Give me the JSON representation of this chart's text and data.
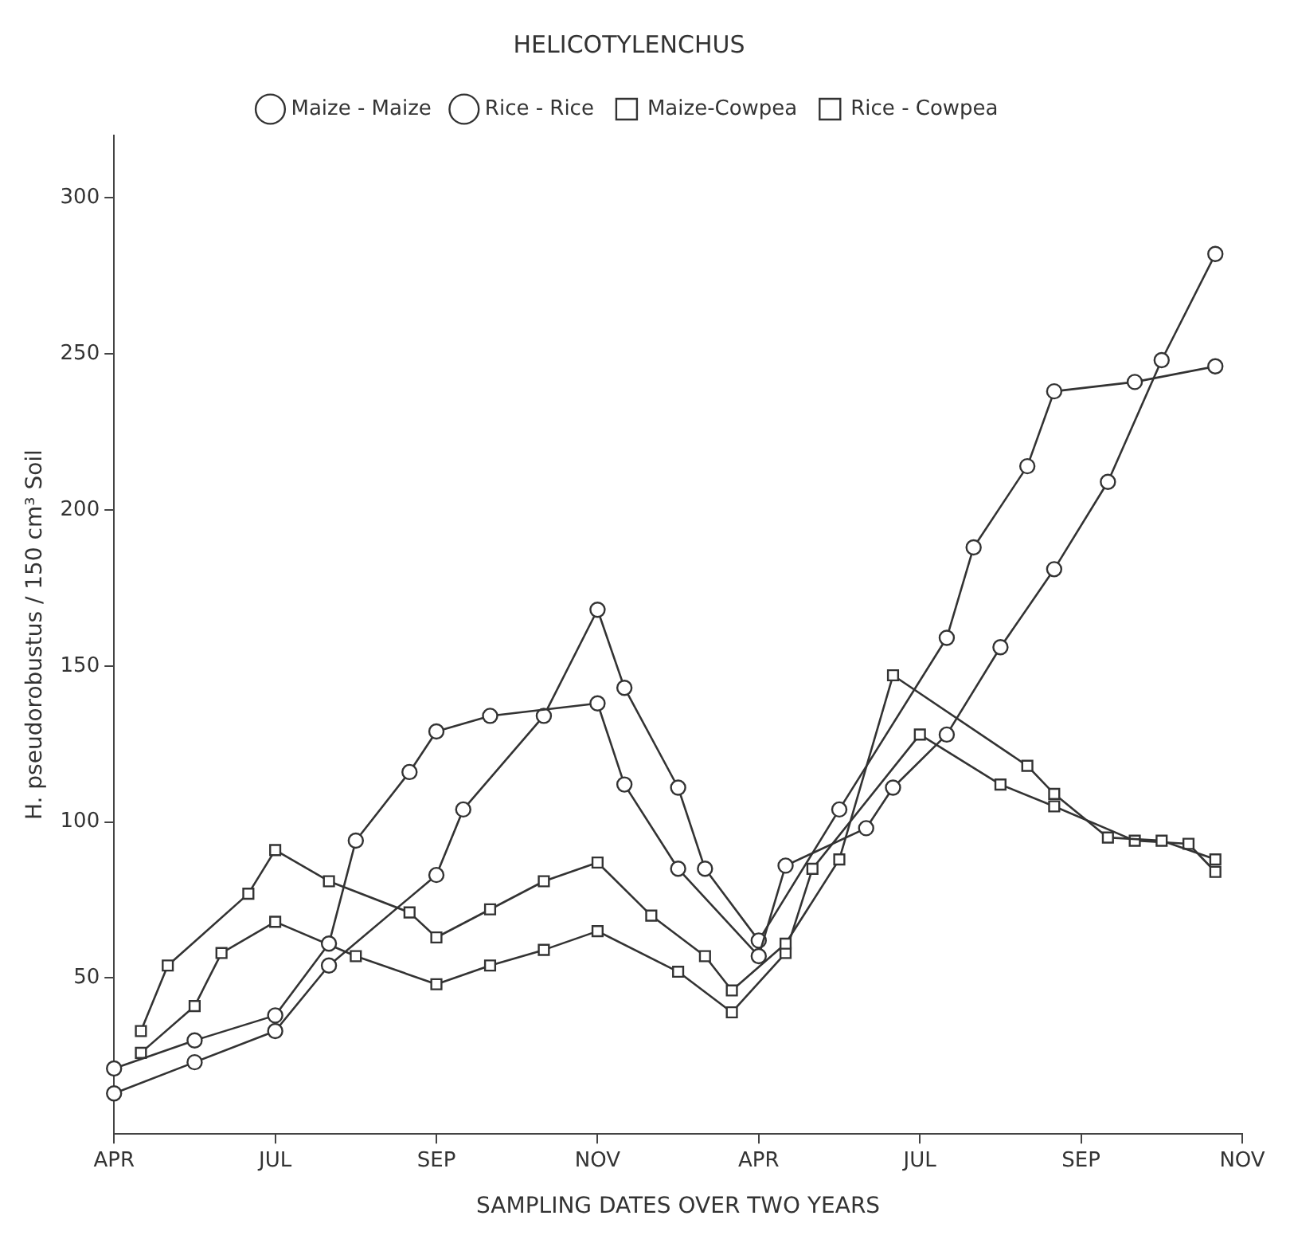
{
  "chart_data": {
    "type": "line",
    "title": "HELICOTYLENCHUS",
    "xlabel": "SAMPLING DATES OVER TWO YEARS",
    "ylabel": "H. pseudorobustus / 150 cm³ Soil",
    "categories": [
      "APR",
      null,
      null,
      null,
      null,
      null,
      "JUL",
      null,
      null,
      null,
      null,
      null,
      "SEP",
      null,
      null,
      null,
      null,
      null,
      "NOV",
      null,
      null,
      null,
      null,
      null,
      "APR",
      null,
      null,
      null,
      null,
      null,
      "JUL",
      null,
      null,
      null,
      null,
      null,
      "SEP",
      null,
      null,
      null,
      null,
      null,
      "NOV"
    ],
    "ylim": [
      0,
      320
    ],
    "yticks": [
      50,
      100,
      150,
      200,
      250,
      300
    ],
    "grid": false,
    "legend": "top",
    "line_style": "solid",
    "series": [
      {
        "name": "Maize - Maize",
        "color": "#333333",
        "marker": "circle",
        "values": [
          21,
          null,
          null,
          30,
          null,
          null,
          38,
          null,
          61,
          94,
          null,
          116,
          129,
          null,
          134,
          null,
          null,
          null,
          138,
          112,
          null,
          85,
          null,
          null,
          57,
          86,
          null,
          null,
          98,
          111,
          null,
          128,
          null,
          156,
          null,
          181,
          null,
          209,
          null,
          248,
          null,
          282,
          null
        ]
      },
      {
        "name": "Rice - Rice",
        "color": "#333333",
        "marker": "circle",
        "values": [
          13,
          null,
          null,
          23,
          null,
          null,
          33,
          null,
          54,
          null,
          null,
          null,
          83,
          104,
          null,
          null,
          134,
          null,
          168,
          143,
          null,
          111,
          85,
          null,
          62,
          null,
          null,
          104,
          null,
          null,
          null,
          159,
          188,
          null,
          214,
          238,
          null,
          null,
          241,
          null,
          null,
          246,
          null
        ]
      },
      {
        "name": "Maize-Cowpea",
        "color": "#333333",
        "marker": "square",
        "values": [
          null,
          33,
          54,
          null,
          null,
          77,
          91,
          null,
          81,
          null,
          null,
          71,
          63,
          null,
          72,
          null,
          81,
          null,
          87,
          null,
          70,
          null,
          57,
          46,
          null,
          61,
          null,
          88,
          null,
          147,
          null,
          null,
          null,
          null,
          118,
          109,
          null,
          95,
          null,
          94,
          null,
          88,
          null
        ]
      },
      {
        "name": "Rice - Cowpea",
        "color": "#333333",
        "marker": "square",
        "values": [
          null,
          26,
          null,
          41,
          58,
          null,
          68,
          null,
          null,
          57,
          null,
          null,
          48,
          null,
          54,
          null,
          59,
          null,
          65,
          null,
          null,
          52,
          null,
          39,
          null,
          58,
          85,
          null,
          null,
          null,
          128,
          null,
          null,
          112,
          null,
          105,
          null,
          null,
          94,
          null,
          93,
          84,
          null
        ]
      }
    ]
  }
}
